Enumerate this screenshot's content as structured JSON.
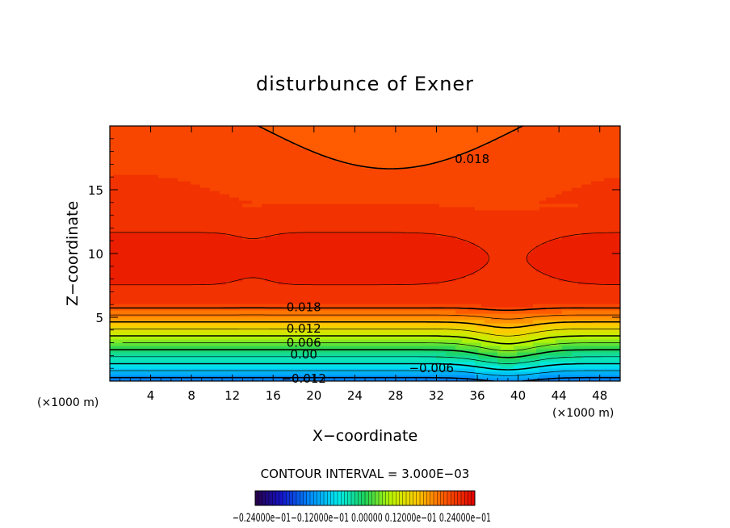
{
  "chart_data": {
    "type": "heatmap",
    "title": "disturbunce of Exner",
    "xlabel": "X−coordinate",
    "ylabel": "Z−coordinate",
    "x_unit": "(×1000 m)",
    "y_unit": "(×1000 m)",
    "xlim": [
      0,
      50
    ],
    "ylim": [
      0,
      20
    ],
    "x_ticks": [
      "4",
      "8",
      "12",
      "16",
      "20",
      "24",
      "28",
      "32",
      "36",
      "40",
      "44",
      "48"
    ],
    "y_ticks": [
      "5",
      "10",
      "15"
    ],
    "contour_interval_text": "CONTOUR INTERVAL = 3.000E−03",
    "contour_labels": [
      {
        "text": "0.018",
        "x": 35.5,
        "y": 17.4
      },
      {
        "text": "0.018",
        "x": 19.0,
        "y": 5.8
      },
      {
        "text": "0.012",
        "x": 19.0,
        "y": 4.1
      },
      {
        "text": "0.006",
        "x": 19.0,
        "y": 3.0
      },
      {
        "text": "0.00",
        "x": 19.0,
        "y": 2.1
      },
      {
        "text": "−0.006",
        "x": 31.5,
        "y": 1.0
      },
      {
        "text": "−0.012",
        "x": 19.0,
        "y": 0.2
      }
    ],
    "colorbar": {
      "min": -0.024,
      "max": 0.024,
      "tick_label_text": "−0.24000e−01−0.12000e−01 0.00000 0.12000e−01 0.24000e−01"
    }
  }
}
